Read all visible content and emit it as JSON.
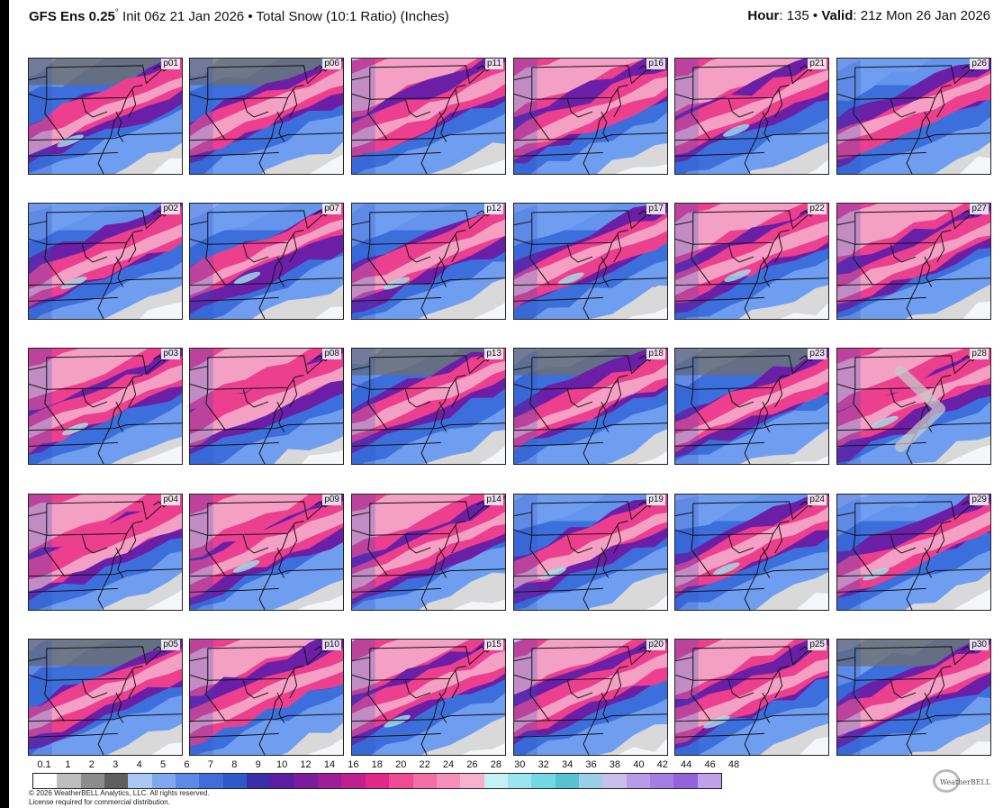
{
  "header": {
    "model": "GFS Ens 0.25",
    "degree": "°",
    "init_text": "Init 06z 21 Jan 2026",
    "separator": "•",
    "product_text": "Total Snow (10:1 Ratio) (Inches)",
    "hour_label": "Hour",
    "hour_value": ": 135",
    "valid_label": "Valid",
    "valid_value": ": 21z Mon 26 Jan 2026"
  },
  "members": [
    [
      "p01",
      "p06",
      "p11",
      "p16",
      "p21",
      "p26"
    ],
    [
      "p02",
      "p07",
      "p12",
      "p17",
      "p22",
      "p27"
    ],
    [
      "p03",
      "p08",
      "p13",
      "p18",
      "p23",
      "p28"
    ],
    [
      "p04",
      "p09",
      "p14",
      "p19",
      "p24",
      "p29"
    ],
    [
      "p05",
      "p10",
      "p15",
      "p20",
      "p25",
      "p30"
    ]
  ],
  "scale": {
    "labels": [
      "0.1",
      "1",
      "2",
      "3",
      "4",
      "5",
      "6",
      "7",
      "8",
      "9",
      "10",
      "12",
      "14",
      "16",
      "18",
      "20",
      "22",
      "24",
      "26",
      "28",
      "30",
      "32",
      "34",
      "36",
      "38",
      "40",
      "42",
      "44",
      "46",
      "48"
    ],
    "colors": [
      "#ffffff",
      "#bdbdbd",
      "#8c8c8c",
      "#5f5f5f",
      "#a9c8f5",
      "#7fa9ef",
      "#5b8be6",
      "#3f6ed9",
      "#2f58c8",
      "#3a2fa8",
      "#5a1fa0",
      "#7a1d9c",
      "#9d1f98",
      "#c01f8f",
      "#e0288a",
      "#ef4a92",
      "#f46ea6",
      "#f78fbb",
      "#f8b0cf",
      "#c6f0f4",
      "#9ae6ee",
      "#74d7e4",
      "#56c2d4",
      "#9ad0e6",
      "#c8c0ea",
      "#b79be8",
      "#a57ee2",
      "#9362dc",
      "#c0a0ea"
    ]
  },
  "copyright": {
    "line1": "© 2026 WeatherBELL Analytics, LLC. All rights reserved.",
    "line2": "License required for commercial distribution."
  },
  "logo": {
    "text": "WeatherBELL"
  },
  "icons": {
    "next": "chevron-right-icon",
    "logo": "weatherbell-logo"
  },
  "colors": {
    "white": "#f4f6fa",
    "light_gray": "#d9d9d9",
    "gray": "#a0a0a0",
    "dark_gray": "#6e6e6e",
    "light_blue": "#6f9ef0",
    "blue": "#3d6fdc",
    "deep_blue": "#2a4fc4",
    "purple": "#6b1fa6",
    "magenta": "#c01f8f",
    "pink": "#ec3f8e",
    "light_pink": "#f3a0c4",
    "cyan": "#9fe6ec"
  }
}
